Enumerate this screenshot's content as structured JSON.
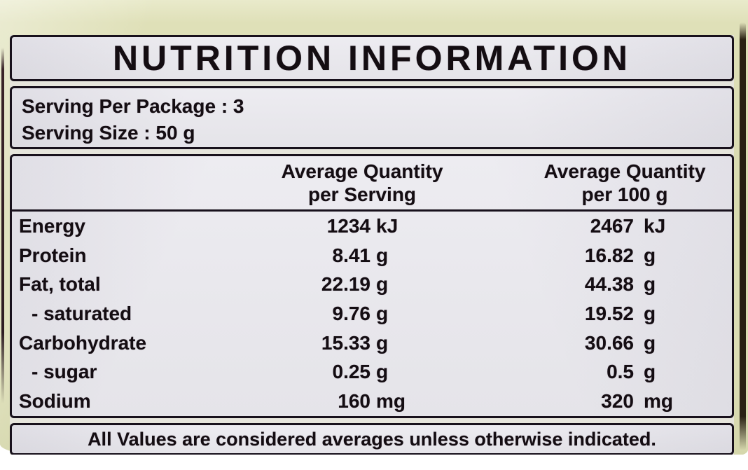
{
  "colors": {
    "package_background": "#dcddb4",
    "label_background": "#e9e8ed",
    "border": "#18111c",
    "text": "#140d12",
    "package_edge_shadow": "#241c10"
  },
  "label": {
    "title": "NUTRITION INFORMATION",
    "serving_info": {
      "servings_per_package": "Serving Per Package : 3",
      "serving_size": "Serving Size : 50 g"
    },
    "column_headers": {
      "per_serving": {
        "line1": "Average Quantity",
        "line2": "per Serving"
      },
      "per_100g": {
        "line1": "Average Quantity",
        "line2": "per 100 g"
      }
    },
    "rows": [
      {
        "label": "Energy",
        "per_serving": {
          "value": "1234",
          "unit": "kJ"
        },
        "per_100g": {
          "value": "2467",
          "unit": "kJ"
        }
      },
      {
        "label": "Protein",
        "per_serving": {
          "value": "8.41",
          "unit": "g"
        },
        "per_100g": {
          "value": "16.82",
          "unit": "g"
        }
      },
      {
        "label": "Fat, total",
        "per_serving": {
          "value": "22.19",
          "unit": "g"
        },
        "per_100g": {
          "value": "44.38",
          "unit": "g"
        }
      },
      {
        "label": "- saturated",
        "per_serving": {
          "value": "9.76",
          "unit": "g"
        },
        "per_100g": {
          "value": "19.52",
          "unit": "g"
        }
      },
      {
        "label": "Carbohydrate",
        "per_serving": {
          "value": "15.33",
          "unit": "g"
        },
        "per_100g": {
          "value": "30.66",
          "unit": "g"
        }
      },
      {
        "label": "- sugar",
        "per_serving": {
          "value": "0.25",
          "unit": "g"
        },
        "per_100g": {
          "value": "0.5",
          "unit": "g"
        }
      },
      {
        "label": "Sodium",
        "per_serving": {
          "value": "160",
          "unit": "mg"
        },
        "per_100g": {
          "value": "320",
          "unit": "mg"
        }
      }
    ],
    "footer_note": "All Values are considered averages unless otherwise indicated."
  }
}
